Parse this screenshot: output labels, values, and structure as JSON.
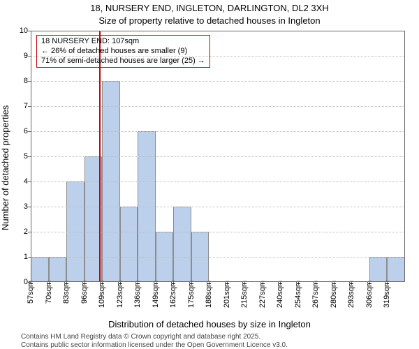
{
  "titles": {
    "line1": "18, NURSERY END, INGLETON, DARLINGTON, DL2 3XH",
    "line2": "Size of property relative to detached houses in Ingleton"
  },
  "axes": {
    "ylabel": "Number of detached properties",
    "xlabel": "Distribution of detached houses by size in Ingleton"
  },
  "attribution": {
    "line1": "Contains HM Land Registry data © Crown copyright and database right 2025.",
    "line2": "Contains public sector information licensed under the Open Government Licence v3.0."
  },
  "chart": {
    "type": "histogram",
    "ylim": [
      0,
      10
    ],
    "ytick_step": 1,
    "ytick_labels": [
      "0",
      "1",
      "2",
      "3",
      "4",
      "5",
      "6",
      "7",
      "8",
      "9",
      "10"
    ],
    "xtick_labels": [
      "57sqm",
      "70sqm",
      "83sqm",
      "96sqm",
      "109sqm",
      "123sqm",
      "136sqm",
      "149sqm",
      "162sqm",
      "175sqm",
      "188sqm",
      "201sqm",
      "215sqm",
      "227sqm",
      "240sqm",
      "254sqm",
      "267sqm",
      "280sqm",
      "293sqm",
      "306sqm",
      "319sqm"
    ],
    "bar_values": [
      1,
      1,
      4,
      5,
      8,
      3,
      6,
      2,
      3,
      2,
      0,
      0,
      0,
      0,
      0,
      0,
      0,
      0,
      0,
      1,
      1
    ],
    "bar_fill": "#a6c1e6",
    "bar_fill_opacity": 0.75,
    "bar_border": "#666666",
    "grid_color": "#bbbbbb",
    "axis_color": "#666666",
    "reference_line": {
      "x_index": 3.85,
      "color": "#cc0000",
      "width": 2,
      "annotation": {
        "line1": "18 NURSERY END: 107sqm",
        "line2": "← 26% of detached houses are smaller (9)",
        "line3": "71% of semi-detached houses are larger (25) →",
        "border_color": "#cc0000",
        "text_color": "#000000"
      }
    },
    "background_color": "#ffffff",
    "label_fontsize": 13,
    "tick_fontsize": 11
  }
}
